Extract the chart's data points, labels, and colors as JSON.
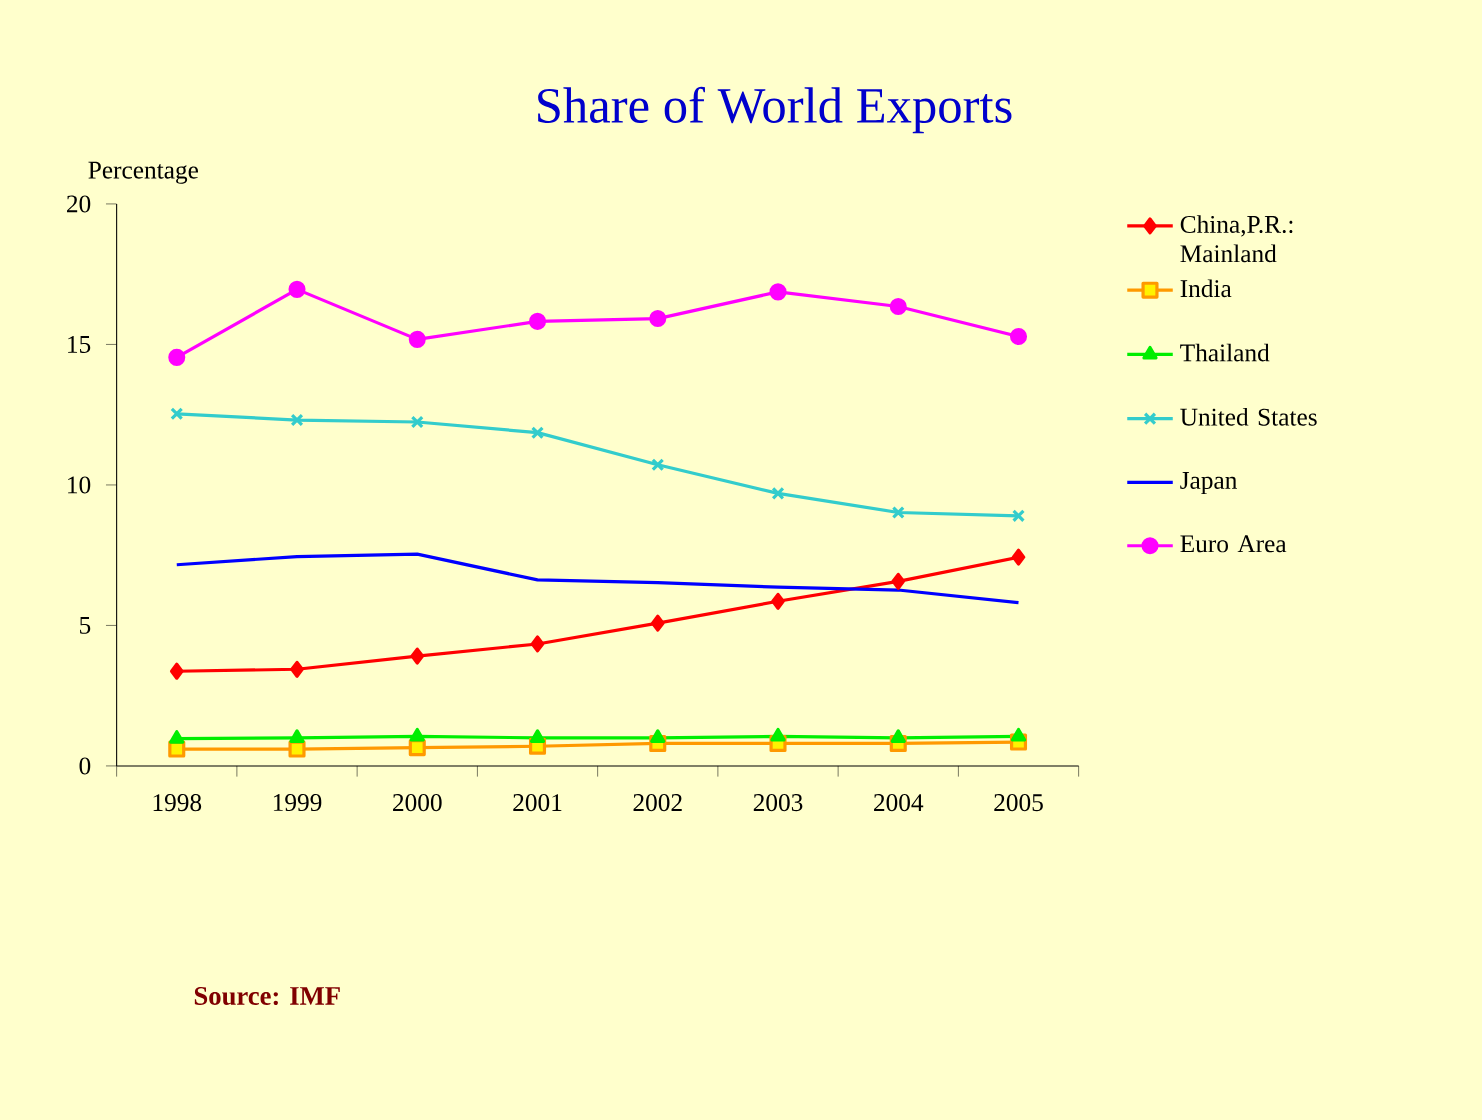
{
  "chart_data": {
    "type": "line",
    "title": "Share of World Exports",
    "ylabel": "Percentage",
    "categories": [
      "1998",
      "1999",
      "2000",
      "2001",
      "2002",
      "2003",
      "2004",
      "2005"
    ],
    "series": [
      {
        "name": "China,P.R.: Mainland",
        "color": "#ff0000",
        "marker": "diamond",
        "values": [
          3.37,
          3.44,
          3.91,
          4.34,
          5.08,
          5.86,
          6.57,
          7.43
        ]
      },
      {
        "name": "India",
        "color": "#ff9900",
        "marker": "square",
        "values": [
          0.6,
          0.6,
          0.65,
          0.7,
          0.8,
          0.8,
          0.8,
          0.85
        ]
      },
      {
        "name": "Thailand",
        "color": "#00ee00",
        "marker": "triangle",
        "values": [
          0.97,
          1.0,
          1.05,
          1.0,
          1.0,
          1.05,
          1.0,
          1.05
        ]
      },
      {
        "name": "United States",
        "color": "#33cccc",
        "marker": "cross",
        "values": [
          12.53,
          12.31,
          12.24,
          11.86,
          10.72,
          9.7,
          9.02,
          8.9
        ]
      },
      {
        "name": "Japan",
        "color": "#0000ff",
        "marker": "none",
        "values": [
          7.16,
          7.45,
          7.54,
          6.62,
          6.52,
          6.36,
          6.26,
          5.81
        ]
      },
      {
        "name": "Euro Area",
        "color": "#ff00ff",
        "marker": "circle",
        "values": [
          14.54,
          16.96,
          15.18,
          15.82,
          15.92,
          16.87,
          16.35,
          15.28
        ]
      }
    ],
    "ylim": [
      0,
      20
    ],
    "yticks": [
      0,
      5,
      10,
      15,
      20
    ],
    "grid": false,
    "legend": "right",
    "annotations": [
      "Source: IMF"
    ]
  }
}
